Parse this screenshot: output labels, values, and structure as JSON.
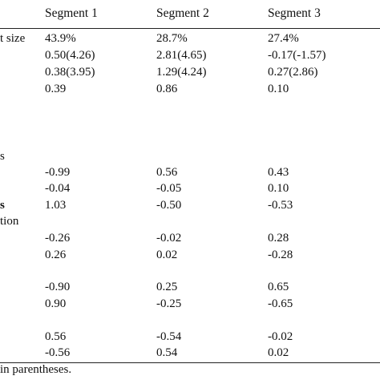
{
  "table": {
    "headers": [
      "Segment 1",
      "Segment 2",
      "Segment 3"
    ],
    "row_labels": {
      "market_size": "t size",
      "group_s": "s",
      "group_bold": "s",
      "group_ation": "tion"
    },
    "rows": [
      [
        "43.9%",
        "28.7%",
        "27.4%"
      ],
      [
        "0.50(4.26)",
        "2.81(4.65)",
        "-0.17(-1.57)"
      ],
      [
        "0.38(3.95)",
        "1.29(4.24)",
        "0.27(2.86)"
      ],
      [
        "0.39",
        "0.86",
        "0.10"
      ],
      [
        "-0.99",
        "0.56",
        "0.43"
      ],
      [
        "-0.04",
        "-0.05",
        "0.10"
      ],
      [
        "1.03",
        "-0.50",
        "-0.53"
      ],
      [
        "-0.26",
        "-0.02",
        "0.28"
      ],
      [
        "0.26",
        "0.02",
        "-0.28"
      ],
      [
        "-0.90",
        "0.25",
        "0.65"
      ],
      [
        "0.90",
        "-0.25",
        "-0.65"
      ],
      [
        "0.56",
        "-0.54",
        "-0.02"
      ],
      [
        "-0.56",
        "0.54",
        "0.02"
      ]
    ],
    "footnote": "in parentheses."
  }
}
